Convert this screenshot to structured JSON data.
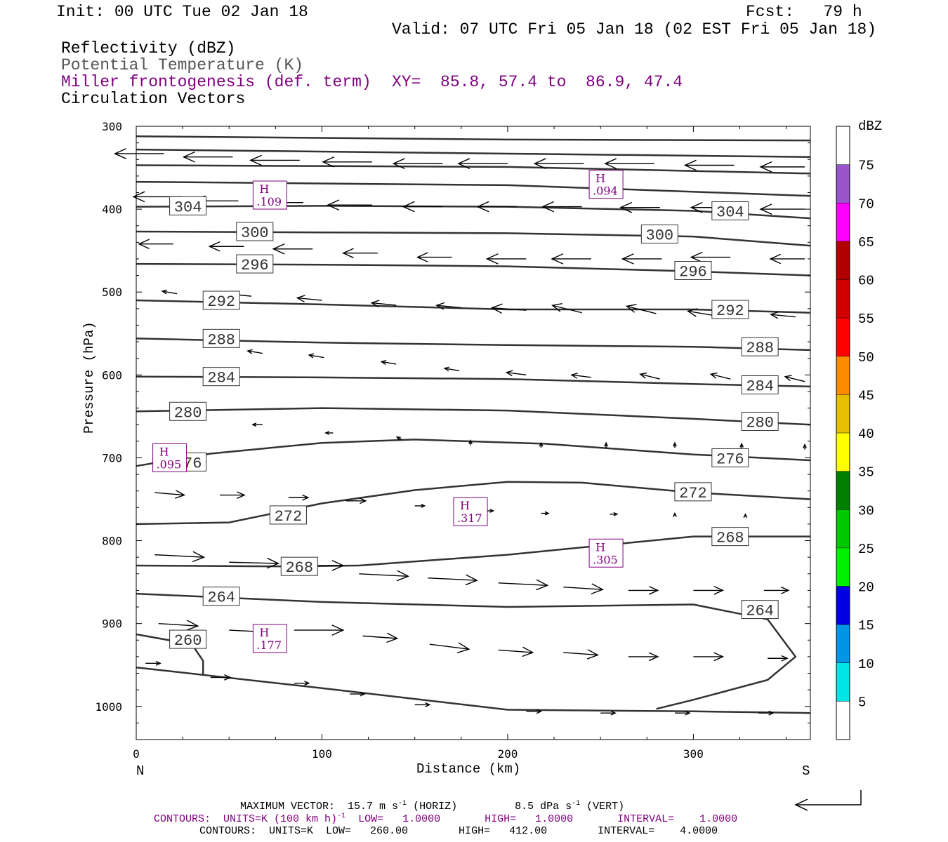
{
  "header": {
    "init": "Init: 00 UTC Tue 02 Jan 18",
    "fcst": "Fcst:   79 h",
    "valid": "Valid: 07 UTC Fri 05 Jan 18 (02 EST Fri 05 Jan 18)",
    "field1": "Reflectivity (dBZ)",
    "field2": "Potential Temperature (K)",
    "field3": "Miller frontogenesis (def. term)",
    "xy": "XY=  85.8, 57.4 to  86.9, 47.4",
    "field4": "Circulation Vectors"
  },
  "colors": {
    "purple": "#800080",
    "theta": "#333333",
    "refl_scale": [
      "#ffffff",
      "#00e5e5",
      "#0095e5",
      "#0000e0",
      "#00f000",
      "#00c800",
      "#008000",
      "#ffff00",
      "#e5bf00",
      "#ff8c00",
      "#ff0000",
      "#d00000",
      "#b00000",
      "#ff00ff",
      "#9955cc",
      "#ffffff"
    ]
  },
  "chart_data": {
    "type": "cross-section",
    "xlabel": "Distance (km)",
    "ylabel": "Pressure (hPa)",
    "xlim": [
      0,
      363
    ],
    "ylim": [
      1040,
      300
    ],
    "x_ticks": [
      "0",
      "100",
      "200",
      "300"
    ],
    "y_ticks": [
      "300",
      "400",
      "500",
      "600",
      "700",
      "800",
      "900",
      "1000"
    ],
    "left_end": "N",
    "right_end": "S",
    "colorbar": {
      "unit": "dBZ",
      "labels": [
        "5",
        "10",
        "15",
        "20",
        "25",
        "30",
        "35",
        "40",
        "45",
        "50",
        "55",
        "60",
        "65",
        "70",
        "75"
      ]
    },
    "theta_contours": [
      {
        "value": 304,
        "labels": [
          "304",
          "304"
        ],
        "label_at": [
          [
            18,
            396
          ],
          [
            310,
            402
          ]
        ],
        "points": [
          [
            0,
            397
          ],
          [
            100,
            396
          ],
          [
            200,
            397
          ],
          [
            300,
            402
          ],
          [
            363,
            411
          ]
        ]
      },
      {
        "value": 300,
        "labels": [
          "300",
          "300"
        ],
        "label_at": [
          [
            54,
            427
          ],
          [
            272,
            430
          ]
        ],
        "points": [
          [
            0,
            427
          ],
          [
            100,
            428
          ],
          [
            200,
            429
          ],
          [
            300,
            433
          ],
          [
            363,
            444
          ]
        ]
      },
      {
        "value": 296,
        "labels": [
          "296",
          "296"
        ],
        "label_at": [
          [
            54,
            466
          ],
          [
            290,
            474
          ]
        ],
        "points": [
          [
            0,
            466
          ],
          [
            100,
            467
          ],
          [
            200,
            469
          ],
          [
            300,
            475
          ],
          [
            363,
            480
          ]
        ]
      },
      {
        "value": 292,
        "labels": [
          "292",
          "292"
        ],
        "label_at": [
          [
            36,
            510
          ],
          [
            310,
            521
          ]
        ],
        "points": [
          [
            0,
            510
          ],
          [
            100,
            515
          ],
          [
            200,
            521
          ],
          [
            300,
            521
          ],
          [
            363,
            525
          ]
        ]
      },
      {
        "value": 288,
        "labels": [
          "288",
          "288"
        ],
        "label_at": [
          [
            36,
            556
          ],
          [
            326,
            566
          ]
        ],
        "points": [
          [
            0,
            556
          ],
          [
            100,
            561
          ],
          [
            200,
            564
          ],
          [
            300,
            566
          ],
          [
            363,
            570
          ]
        ]
      },
      {
        "value": 284,
        "labels": [
          "284",
          "284"
        ],
        "label_at": [
          [
            36,
            602
          ],
          [
            326,
            612
          ]
        ],
        "points": [
          [
            0,
            602
          ],
          [
            100,
            603
          ],
          [
            200,
            605
          ],
          [
            300,
            611
          ],
          [
            363,
            614
          ]
        ]
      },
      {
        "value": 280,
        "labels": [
          "280",
          "280"
        ],
        "label_at": [
          [
            18,
            644
          ],
          [
            326,
            656
          ]
        ],
        "points": [
          [
            0,
            644
          ],
          [
            100,
            640
          ],
          [
            200,
            643
          ],
          [
            300,
            653
          ],
          [
            363,
            660
          ]
        ]
      },
      {
        "value": 276,
        "labels": [
          "276",
          "276"
        ],
        "label_at": [
          [
            18,
            705
          ],
          [
            310,
            700
          ]
        ],
        "points": [
          [
            0,
            710
          ],
          [
            40,
            695
          ],
          [
            100,
            682
          ],
          [
            150,
            678
          ],
          [
            220,
            683
          ],
          [
            300,
            696
          ],
          [
            363,
            703
          ]
        ]
      },
      {
        "value": 272,
        "labels": [
          "272",
          "272"
        ],
        "label_at": [
          [
            72,
            769
          ],
          [
            290,
            741
          ]
        ],
        "points": [
          [
            0,
            780
          ],
          [
            50,
            778
          ],
          [
            100,
            755
          ],
          [
            150,
            739
          ],
          [
            200,
            729
          ],
          [
            240,
            730
          ],
          [
            300,
            742
          ],
          [
            363,
            750
          ]
        ]
      },
      {
        "value": 268,
        "labels": [
          "268",
          "268"
        ],
        "label_at": [
          [
            78,
            831
          ],
          [
            310,
            795
          ]
        ],
        "points": [
          [
            0,
            830
          ],
          [
            80,
            831
          ],
          [
            120,
            830
          ],
          [
            200,
            817
          ],
          [
            300,
            795
          ],
          [
            363,
            795
          ]
        ]
      },
      {
        "value": 264,
        "labels": [
          "264",
          "264"
        ],
        "label_at": [
          [
            36,
            867
          ],
          [
            326,
            883
          ]
        ],
        "points": [
          [
            0,
            864
          ],
          [
            100,
            874
          ],
          [
            200,
            880
          ],
          [
            300,
            877
          ],
          [
            340,
            895
          ],
          [
            355,
            940
          ],
          [
            340,
            968
          ],
          [
            300,
            992
          ],
          [
            280,
            1003
          ]
        ]
      },
      {
        "value": 260,
        "labels": [
          "260"
        ],
        "label_at": [
          [
            18,
            919
          ]
        ],
        "points": [
          [
            0,
            913
          ],
          [
            30,
            925
          ],
          [
            36,
            945
          ],
          [
            36,
            962
          ]
        ]
      },
      {
        "value": 0,
        "labels": [],
        "label_at": [],
        "points": [
          [
            0,
            953
          ],
          [
            100,
            978
          ],
          [
            200,
            1004
          ],
          [
            300,
            1006
          ],
          [
            363,
            1008
          ]
        ]
      },
      {
        "value": 0,
        "labels": [],
        "label_at": [],
        "points": [
          [
            0,
            312
          ],
          [
            200,
            316
          ],
          [
            363,
            317
          ]
        ]
      },
      {
        "value": 0,
        "labels": [],
        "label_at": [],
        "points": [
          [
            0,
            328
          ],
          [
            200,
            333
          ],
          [
            363,
            337
          ]
        ]
      },
      {
        "value": 0,
        "labels": [],
        "label_at": [],
        "points": [
          [
            0,
            347
          ],
          [
            200,
            349
          ],
          [
            363,
            357
          ]
        ]
      },
      {
        "value": 0,
        "labels": [],
        "label_at": [],
        "points": [
          [
            0,
            367
          ],
          [
            200,
            371
          ],
          [
            363,
            384
          ]
        ]
      }
    ],
    "frontogenesis_highs": [
      {
        "label": "H",
        "value": ".109",
        "x": 72,
        "p": 383
      },
      {
        "label": "H",
        "value": ".094",
        "x": 253,
        "p": 370
      },
      {
        "label": "H",
        "value": ".095",
        "x": 18,
        "p": 700
      },
      {
        "label": "H",
        "value": ".317",
        "x": 180,
        "p": 765
      },
      {
        "label": "H",
        "value": ".305",
        "x": 253,
        "p": 815
      },
      {
        "label": "H",
        "value": ".177",
        "x": 72,
        "p": 918
      }
    ],
    "vectors_note": "approximate circulation vectors: [x_km, p_hPa, u, w]; negative u = northward (leftward) flow",
    "vectors": [
      [
        15,
        333,
        -1.0,
        0
      ],
      [
        52,
        337,
        -1.0,
        0
      ],
      [
        88,
        341,
        -1.0,
        0
      ],
      [
        127,
        343,
        -1.0,
        0
      ],
      [
        165,
        345,
        -1.0,
        0
      ],
      [
        200,
        345,
        -1.0,
        0
      ],
      [
        241,
        345,
        -1.0,
        0
      ],
      [
        279,
        345,
        -1.0,
        0
      ],
      [
        322,
        347,
        -1.0,
        0
      ],
      [
        360,
        349,
        -0.9,
        0
      ],
      [
        25,
        385,
        -1.0,
        0
      ],
      [
        55,
        390,
        -0.9,
        0
      ],
      [
        90,
        392,
        -0.9,
        0
      ],
      [
        127,
        395,
        -0.9,
        0
      ],
      [
        165,
        397,
        -0.8,
        0
      ],
      [
        205,
        397,
        -0.8,
        0
      ],
      [
        240,
        397,
        -0.8,
        0
      ],
      [
        282,
        398,
        -0.8,
        0
      ],
      [
        320,
        398,
        -0.8,
        0
      ],
      [
        360,
        400,
        -0.9,
        0
      ],
      [
        20,
        442,
        -0.7,
        0
      ],
      [
        58,
        445,
        -0.7,
        0
      ],
      [
        95,
        448,
        -0.8,
        0
      ],
      [
        130,
        453,
        -0.7,
        0
      ],
      [
        170,
        458,
        -0.7,
        0
      ],
      [
        210,
        460,
        -0.8,
        0
      ],
      [
        245,
        460,
        -0.8,
        0
      ],
      [
        283,
        460,
        -0.8,
        0
      ],
      [
        320,
        458,
        -0.8,
        0
      ],
      [
        360,
        460,
        -0.7,
        0
      ],
      [
        22,
        502,
        -0.3,
        0.1
      ],
      [
        62,
        505,
        -0.5,
        0.1
      ],
      [
        100,
        510,
        -0.5,
        0.1
      ],
      [
        140,
        516,
        -0.5,
        0.1
      ],
      [
        175,
        519,
        -0.5,
        0.1
      ],
      [
        210,
        522,
        -0.7,
        0.1
      ],
      [
        240,
        525,
        -0.6,
        0.3
      ],
      [
        280,
        526,
        -0.6,
        0.3
      ],
      [
        313,
        529,
        -0.6,
        0.2
      ],
      [
        355,
        530,
        -0.5,
        0.1
      ],
      [
        68,
        574,
        -0.3,
        0.1
      ],
      [
        101,
        579,
        -0.3,
        0.1
      ],
      [
        140,
        587,
        -0.3,
        0.1
      ],
      [
        174,
        595,
        -0.3,
        0.1
      ],
      [
        210,
        600,
        -0.4,
        0.1
      ],
      [
        245,
        603,
        -0.4,
        0.1
      ],
      [
        282,
        605,
        -0.4,
        0.2
      ],
      [
        320,
        605,
        -0.4,
        0.2
      ],
      [
        360,
        608,
        -0.4,
        0.2
      ],
      [
        25,
        650,
        -0.2,
        0
      ],
      [
        68,
        660,
        -0.2,
        0
      ],
      [
        106,
        670,
        -0.15,
        0
      ],
      [
        143,
        678,
        -0.1,
        0.1
      ],
      [
        180,
        685,
        0,
        0.2
      ],
      [
        218,
        688,
        0,
        0.2
      ],
      [
        253,
        688,
        0,
        0.2
      ],
      [
        290,
        688,
        0,
        0.2
      ],
      [
        326,
        689,
        0,
        0.2
      ],
      [
        360,
        690,
        0,
        0.2
      ],
      [
        10,
        742,
        0.6,
        -0.1
      ],
      [
        45,
        745,
        0.5,
        0
      ],
      [
        82,
        748,
        0.4,
        0
      ],
      [
        113,
        752,
        0.4,
        0
      ],
      [
        150,
        758,
        0.2,
        0
      ],
      [
        187,
        764,
        0.2,
        0
      ],
      [
        218,
        767,
        0.15,
        0
      ],
      [
        255,
        768,
        0.15,
        0
      ],
      [
        290,
        770,
        0,
        0.1
      ],
      [
        328,
        771,
        0,
        0.1
      ],
      [
        10,
        817,
        1.0,
        -0.1
      ],
      [
        50,
        826,
        1.0,
        -0.05
      ],
      [
        85,
        830,
        1.0,
        0
      ],
      [
        120,
        840,
        1.0,
        -0.1
      ],
      [
        157,
        845,
        1.0,
        -0.1
      ],
      [
        195,
        851,
        1.0,
        -0.1
      ],
      [
        230,
        856,
        0.8,
        -0.1
      ],
      [
        265,
        860,
        0.6,
        0
      ],
      [
        300,
        860,
        0.6,
        0
      ],
      [
        338,
        860,
        0.5,
        0
      ],
      [
        12,
        900,
        0.8,
        -0.1
      ],
      [
        50,
        908,
        1.0,
        -0.1
      ],
      [
        85,
        908,
        1.0,
        0
      ],
      [
        122,
        915,
        0.7,
        -0.1
      ],
      [
        158,
        925,
        0.8,
        -0.2
      ],
      [
        195,
        932,
        0.7,
        -0.1
      ],
      [
        230,
        935,
        0.7,
        -0.1
      ],
      [
        265,
        940,
        0.6,
        0
      ],
      [
        300,
        940,
        0.6,
        0
      ],
      [
        340,
        942,
        0.4,
        0
      ],
      [
        5,
        948,
        0.3,
        0
      ],
      [
        40,
        965,
        0.4,
        0
      ],
      [
        85,
        972,
        0.3,
        0
      ],
      [
        115,
        985,
        0.3,
        0
      ],
      [
        150,
        998,
        0.3,
        0
      ],
      [
        210,
        1006,
        0.3,
        0
      ],
      [
        250,
        1008,
        0.3,
        0
      ],
      [
        290,
        1008,
        0.3,
        0
      ],
      [
        335,
        1008,
        0.3,
        0
      ]
    ]
  },
  "footer": {
    "max_vector": "MAXIMUM VECTOR:  15.7 m s",
    "horiz": "(HORIZ)",
    "vert_val": "8.5 dPa s",
    "vert": "(VERT)",
    "sup": "-1",
    "contour1_a": "CONTOURS:  UNITS=K (100 km h)",
    "contour1_b": "LOW=   1.0000       HIGH=   1.0000       INTERVAL=    1.0000",
    "contour2": "CONTOURS:  UNITS=K  LOW=   260.00        HIGH=   412.00        INTERVAL=    4.0000"
  }
}
